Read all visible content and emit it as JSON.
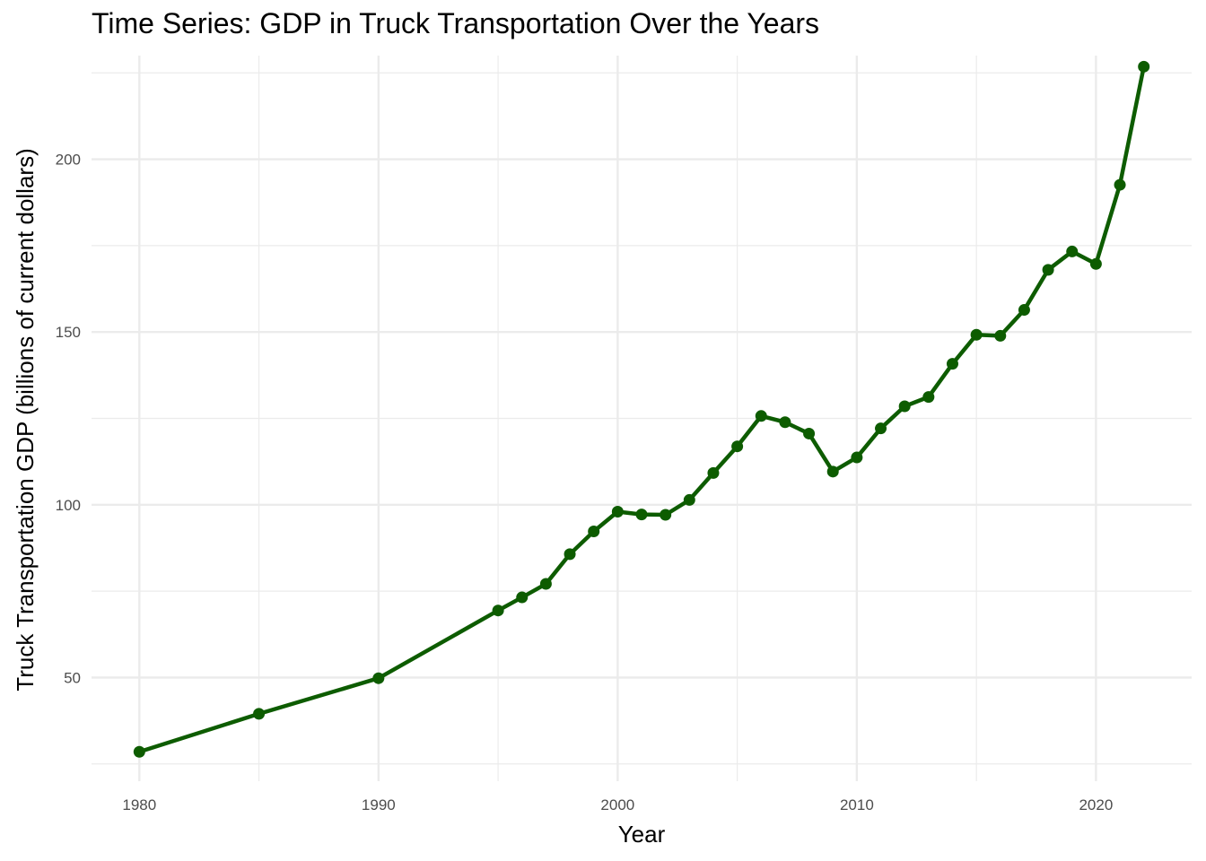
{
  "chart_data": {
    "type": "line",
    "title": "Time Series: GDP in Truck Transportation Over the Years",
    "xlabel": "Year",
    "ylabel": "Truck Transportation GDP (billions of current dollars)",
    "xlim": [
      1978,
      2024
    ],
    "ylim": [
      20,
      230
    ],
    "x_major_ticks": [
      1980,
      1990,
      2000,
      2010,
      2020
    ],
    "x_minor_ticks": [
      1985,
      1995,
      2005,
      2015
    ],
    "y_major_ticks": [
      50,
      100,
      150,
      200
    ],
    "y_minor_ticks": [
      25,
      75,
      125,
      175,
      225
    ],
    "grid": true,
    "line_color": "#0d5c00",
    "grid_color": "#ebebeb",
    "series": [
      {
        "x": [
          1980,
          1985,
          1990,
          1995,
          1996,
          1997,
          1998,
          1999,
          2000,
          2001,
          2002,
          2003,
          2004,
          2005,
          2006,
          2007,
          2008,
          2009,
          2010,
          2011,
          2012,
          2013,
          2014,
          2015,
          2016,
          2017,
          2018,
          2019,
          2020,
          2021,
          2022
        ],
        "y": [
          28.5,
          39.5,
          49.8,
          69.4,
          73.2,
          77.1,
          85.7,
          92.3,
          98.0,
          97.2,
          97.1,
          101.4,
          109.2,
          116.9,
          125.7,
          123.9,
          120.6,
          109.6,
          113.7,
          122.1,
          128.5,
          131.2,
          140.8,
          149.2,
          148.9,
          156.4,
          168.0,
          173.3,
          169.7,
          192.6,
          226.8
        ]
      }
    ]
  }
}
